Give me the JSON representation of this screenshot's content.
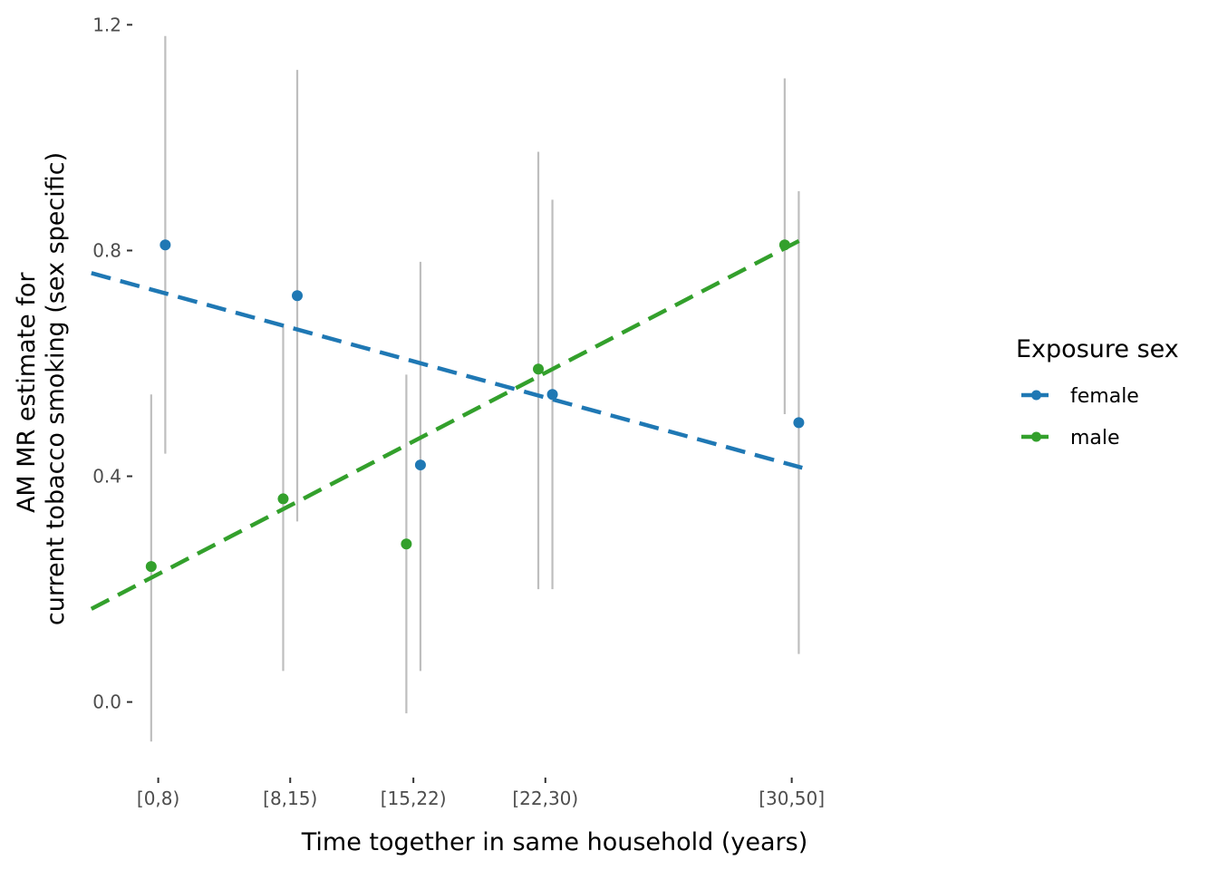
{
  "chart_data": {
    "type": "scatter",
    "xlabel": "Time together in same household (years)",
    "ylabel_lines": [
      "AM MR estimate for",
      "current tobacco smoking (sex specific)"
    ],
    "x_axis": {
      "type": "continuous_years",
      "range": [
        2.63,
        50.37
      ],
      "ticks": [
        {
          "label": "[0,8)",
          "x": 4
        },
        {
          "label": "[8,15)",
          "x": 11.5
        },
        {
          "label": "[15,22)",
          "x": 18.5
        },
        {
          "label": "[22,30)",
          "x": 26
        },
        {
          "label": "[30,50]",
          "x": 40
        }
      ]
    },
    "y_axis": {
      "range": [
        -0.105,
        1.215
      ],
      "ticks": [
        {
          "label": "0.0",
          "value": 0.0
        },
        {
          "label": "0.4",
          "value": 0.4
        },
        {
          "label": "0.8",
          "value": 0.8
        },
        {
          "label": "1.2",
          "value": 1.2
        }
      ]
    },
    "grid": false,
    "legend": {
      "title": "Exposure sex",
      "position": "right"
    },
    "series": [
      {
        "name": "female",
        "color": "#1f78b4",
        "points": [
          {
            "x": 4.4,
            "y": 0.81,
            "ci_low": 0.44,
            "ci_high": 1.18
          },
          {
            "x": 11.9,
            "y": 0.72,
            "ci_low": 0.32,
            "ci_high": 1.12
          },
          {
            "x": 18.9,
            "y": 0.42,
            "ci_low": 0.055,
            "ci_high": 0.78
          },
          {
            "x": 26.4,
            "y": 0.545,
            "ci_low": 0.2,
            "ci_high": 0.89
          },
          {
            "x": 40.4,
            "y": 0.495,
            "ci_low": 0.085,
            "ci_high": 0.905
          }
        ],
        "trend": {
          "x": [
            0.2,
            40.6
          ],
          "y": [
            0.76,
            0.415
          ]
        }
      },
      {
        "name": "male",
        "color": "#33a02c",
        "points": [
          {
            "x": 3.6,
            "y": 0.24,
            "ci_low": -0.07,
            "ci_high": 0.545
          },
          {
            "x": 11.1,
            "y": 0.36,
            "ci_low": 0.055,
            "ci_high": 0.67
          },
          {
            "x": 18.1,
            "y": 0.28,
            "ci_low": -0.02,
            "ci_high": 0.58
          },
          {
            "x": 25.6,
            "y": 0.59,
            "ci_low": 0.2,
            "ci_high": 0.975
          },
          {
            "x": 39.6,
            "y": 0.81,
            "ci_low": 0.51,
            "ci_high": 1.105
          }
        ],
        "trend": {
          "x": [
            0.2,
            40.6
          ],
          "y": [
            0.165,
            0.82
          ]
        }
      }
    ],
    "error_bar_color": "#bebebe"
  }
}
